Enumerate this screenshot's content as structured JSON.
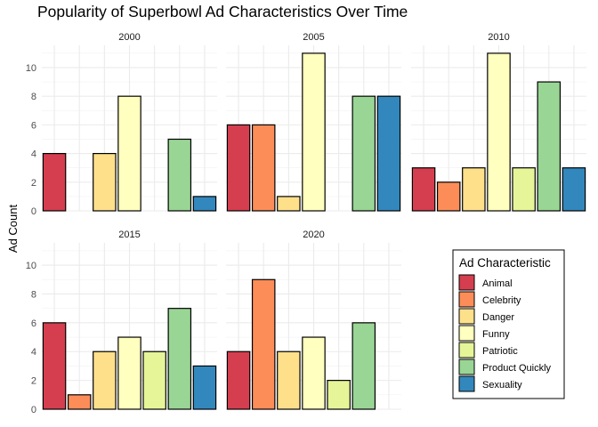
{
  "chart_data": {
    "type": "bar",
    "title": "Popularity of Superbowl Ad Characteristics Over Time",
    "xlabel": "",
    "ylabel": "Ad Count",
    "ylim": [
      0,
      11.55
    ],
    "yticks": [
      "0",
      "2",
      "4",
      "6",
      "8",
      "10"
    ],
    "categories": [
      "Animal",
      "Celebrity",
      "Danger",
      "Funny",
      "Patriotic",
      "Product Quickly",
      "Sexuality"
    ],
    "colors": [
      "#D53E4F",
      "#FC8D59",
      "#FEE08B",
      "#FFFFBF",
      "#E6F598",
      "#99D594",
      "#3288BD"
    ],
    "grid": true,
    "legend_position": "bottom-right",
    "legend_title": "Ad Characteristic",
    "facets": [
      {
        "label": "2000",
        "values": [
          4,
          0,
          4,
          8,
          0,
          5,
          1
        ]
      },
      {
        "label": "2005",
        "values": [
          6,
          6,
          1,
          11,
          0,
          8,
          8
        ]
      },
      {
        "label": "2010",
        "values": [
          3,
          2,
          3,
          11,
          3,
          9,
          3
        ]
      },
      {
        "label": "2015",
        "values": [
          6,
          1,
          4,
          5,
          4,
          7,
          3
        ]
      },
      {
        "label": "2020",
        "values": [
          4,
          9,
          4,
          5,
          2,
          6,
          0
        ]
      }
    ]
  }
}
